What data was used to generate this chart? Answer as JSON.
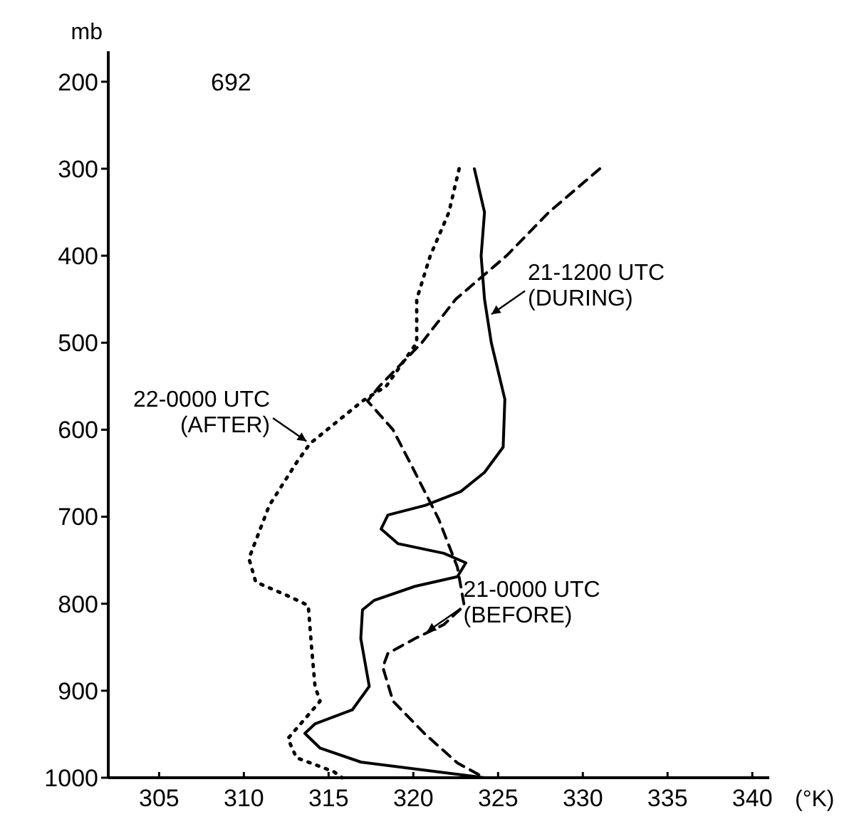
{
  "chart_data": {
    "type": "line",
    "title": "692",
    "xlabel": "(°K)",
    "ylabel": "mb",
    "xlim": [
      302,
      341
    ],
    "xticks": [
      305,
      310,
      315,
      320,
      325,
      330,
      335,
      340
    ],
    "ylim": [
      1000,
      165
    ],
    "yticks": [
      200,
      300,
      400,
      500,
      600,
      700,
      800,
      900,
      1000
    ],
    "grid": false,
    "marker": "none",
    "series": [
      {
        "color": "#000000",
        "line_style": "solid",
        "x": [
          323.6,
          324.2,
          324.0,
          324.2,
          324.6,
          325.4,
          325.3,
          324.2,
          322.8,
          320.7,
          318.5,
          318.1,
          319.1,
          321.8,
          323.1,
          322.6,
          320.1,
          317.7,
          317.0,
          316.9,
          317.2,
          317.4,
          316.4,
          314.2,
          313.6,
          314.5,
          316.9,
          324.2
        ],
        "values": [
          300,
          350,
          400,
          450,
          500,
          565,
          620,
          649,
          671,
          687,
          698,
          714,
          731,
          742,
          753,
          769,
          780,
          796,
          807,
          840,
          873,
          895,
          922,
          938,
          949,
          966,
          982,
          1000
        ]
      },
      {
        "color": "#000000",
        "line_style": "dashed",
        "x": [
          331,
          328,
          325.5,
          322.5,
          320.5,
          318,
          317.3,
          318.8,
          320.1,
          321.5,
          322.6,
          323.0,
          321.8,
          320.1,
          318.5,
          318.2,
          318.8,
          320.7,
          322.6,
          324.2
        ],
        "values": [
          300,
          350,
          400,
          450,
          500,
          550,
          567,
          600,
          649,
          703,
          758,
          802,
          824,
          840,
          857,
          873,
          912,
          950,
          983,
          1000
        ]
      },
      {
        "color": "#000000",
        "line_style": "dotted",
        "x": [
          322.7,
          322.1,
          321,
          320.2,
          320.2,
          318.4,
          317.0,
          313.9,
          313.1,
          311.5,
          310.3,
          310.7,
          312.6,
          313.8,
          314.0,
          314.2,
          314.5,
          312.6,
          313.1,
          315.3,
          315.8
        ],
        "values": [
          300,
          350,
          400,
          450,
          500,
          550,
          567,
          616,
          638,
          687,
          748,
          775,
          791,
          802,
          851,
          895,
          912,
          955,
          977,
          993,
          1000
        ]
      }
    ],
    "annotations": [
      {
        "text": "21-1200 UTC\n(DURING)",
        "x": 324.4,
        "y": 470
      },
      {
        "text": "22-0000 UTC\n(AFTER)",
        "x": 313.9,
        "y": 616
      },
      {
        "text": "21-0000 UTC\n(BEFORE)",
        "x": 320.6,
        "y": 835
      }
    ]
  }
}
